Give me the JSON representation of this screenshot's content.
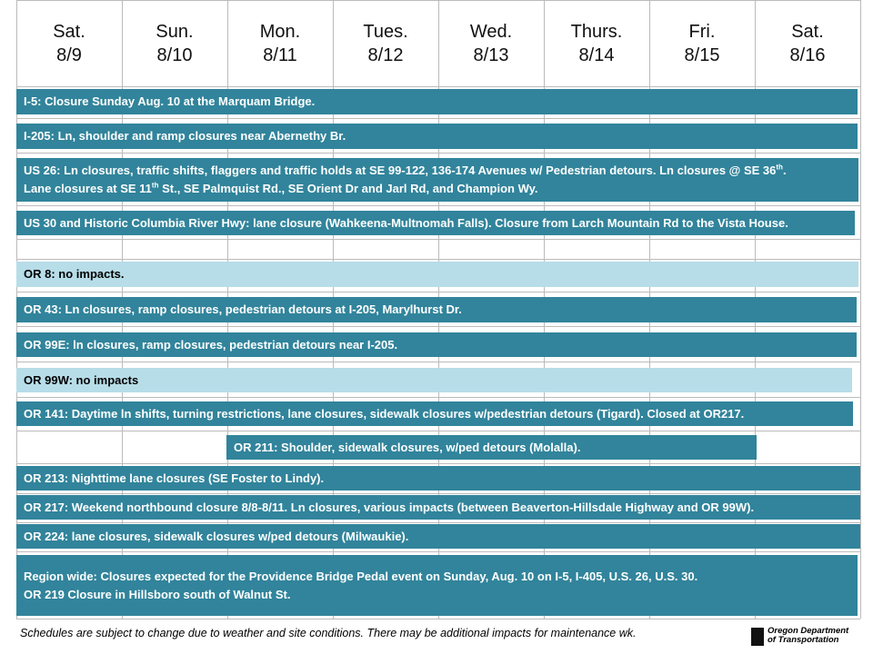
{
  "header": {
    "days": [
      {
        "name": "Sat.",
        "date": "8/9"
      },
      {
        "name": "Sun.",
        "date": "8/10"
      },
      {
        "name": "Mon.",
        "date": "8/11"
      },
      {
        "name": "Tues.",
        "date": "8/12"
      },
      {
        "name": "Wed.",
        "date": "8/13"
      },
      {
        "name": "Thurs.",
        "date": "8/14"
      },
      {
        "name": "Fri.",
        "date": "8/15"
      },
      {
        "name": "Sat.",
        "date": "8/16"
      }
    ]
  },
  "items": [
    {
      "lines": [
        [
          "I-5: Closure Sunday Aug. 10 at the Marquam Bridge."
        ]
      ],
      "color": "#31849b",
      "text_color": "#ffffff"
    },
    {
      "lines": [
        [
          "I-205: Ln, shoulder and ramp closures near Abernethy Br."
        ]
      ],
      "color": "#31849b",
      "text_color": "#ffffff"
    },
    {
      "lines": [
        [
          "US 26: Ln closures, traffic shifts, flaggers and traffic holds at SE 99-122, 136-174 Avenues w/ Pedestrian detours. Ln closures @ SE 36",
          "th",
          "."
        ],
        [
          "Lane closures at SE 11",
          "th",
          " St., SE Palmquist Rd., SE Orient Dr and Jarl Rd, and Champion Wy."
        ]
      ],
      "color": "#31849b",
      "text_color": "#ffffff"
    },
    {
      "lines": [
        [
          "US 30 and Historic Columbia River Hwy: lane closure (Wahkeena-Multnomah Falls). Closure from Larch Mountain Rd to the Vista House."
        ]
      ],
      "color": "#31849b",
      "text_color": "#ffffff"
    },
    {
      "lines": [
        [
          "OR 8: no impacts."
        ]
      ],
      "color": "#b7dde8",
      "text_color": "#000000"
    },
    {
      "lines": [
        [
          "OR 43: Ln closures, ramp closures, pedestrian detours at I-205, Marylhurst Dr."
        ]
      ],
      "color": "#31849b",
      "text_color": "#ffffff"
    },
    {
      "lines": [
        [
          "OR 99E: ln closures, ramp closures, pedestrian detours near I-205."
        ]
      ],
      "color": "#31849b",
      "text_color": "#ffffff"
    },
    {
      "lines": [
        [
          "OR 99W: no impacts"
        ]
      ],
      "color": "#b7dde8",
      "text_color": "#000000"
    },
    {
      "lines": [
        [
          "OR 141: Daytime ln shifts, turning restrictions, lane closures, sidewalk closures w/pedestrian detours (Tigard). Closed at OR217."
        ]
      ],
      "color": "#31849b",
      "text_color": "#ffffff"
    },
    {
      "lines": [
        [
          "OR 211: Shoulder, sidewalk closures, w/ped detours (Molalla)."
        ]
      ],
      "color": "#31849b",
      "text_color": "#ffffff"
    },
    {
      "lines": [
        [
          "OR 213: Nighttime lane closures (SE Foster to Lindy)."
        ]
      ],
      "color": "#31849b",
      "text_color": "#ffffff"
    },
    {
      "lines": [
        [
          "OR 217: Weekend northbound closure 8/8-8/11. Ln closures, various impacts (between Beaverton-Hillsdale Highway and OR 99W)."
        ]
      ],
      "color": "#31849b",
      "text_color": "#ffffff"
    },
    {
      "lines": [
        [
          "OR 224: lane closures, sidewalk closures w/ped detours (Milwaukie)."
        ]
      ],
      "color": "#31849b",
      "text_color": "#ffffff"
    },
    {
      "lines": [
        [
          "Region wide: Closures expected for the Providence Bridge Pedal event on Sunday, Aug. 10 on I-5, I-405, U.S. 26, U.S. 30."
        ],
        [
          "OR 219 Closure in Hillsboro south of Walnut St."
        ]
      ],
      "color": "#31849b",
      "text_color": "#ffffff"
    }
  ],
  "footer": {
    "note": "Schedules are subject to change due to weather and site conditions. There may be additional impacts for maintenance wk.",
    "logo_line1": "Oregon Department",
    "logo_line2": "of Transportation"
  }
}
